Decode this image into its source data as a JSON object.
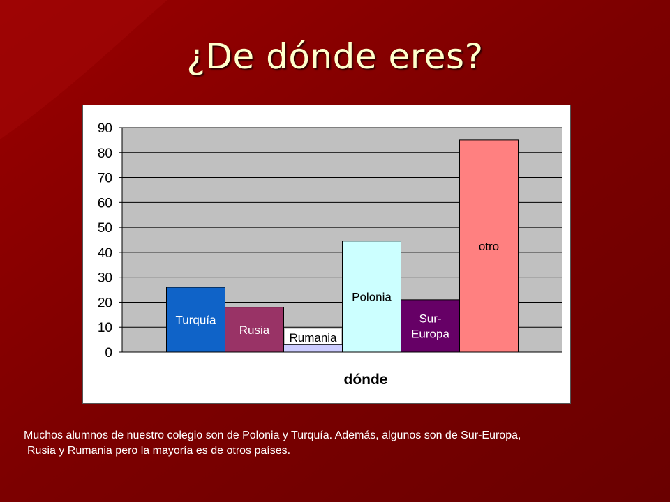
{
  "slide": {
    "title": "¿De dónde eres?",
    "caption_line1": "Muchos alumnos de nuestro colegio son de Polonia y Turquía. Además, algunos son de Sur-Europa,",
    "caption_line2": "Rusia y Rumania pero la mayoría es de otros países.",
    "background_color": "#7a0000"
  },
  "chart_data": {
    "type": "bar",
    "title": "",
    "xlabel": "dónde",
    "ylabel": "",
    "ylim": [
      0,
      90
    ],
    "yticks": [
      0,
      10,
      20,
      30,
      40,
      50,
      60,
      70,
      80,
      90
    ],
    "grid": true,
    "legend": "none",
    "plot_background": "#c0c0c0",
    "bars": [
      {
        "label": [
          "Turquía"
        ],
        "value": 26,
        "color": "#0f63c8"
      },
      {
        "label": [
          "Rusia"
        ],
        "value": 18,
        "color": "#993366"
      },
      {
        "label": [
          "Rumania"
        ],
        "value": 3,
        "color": "#ccccff"
      },
      {
        "label": [
          "Polonia"
        ],
        "value": 44.5,
        "color": "#ccffff"
      },
      {
        "label": [
          "Sur-",
          "Europa"
        ],
        "value": 21,
        "color": "#660066"
      },
      {
        "label": [
          "otro"
        ],
        "value": 85,
        "color": "#ff8080"
      }
    ]
  }
}
